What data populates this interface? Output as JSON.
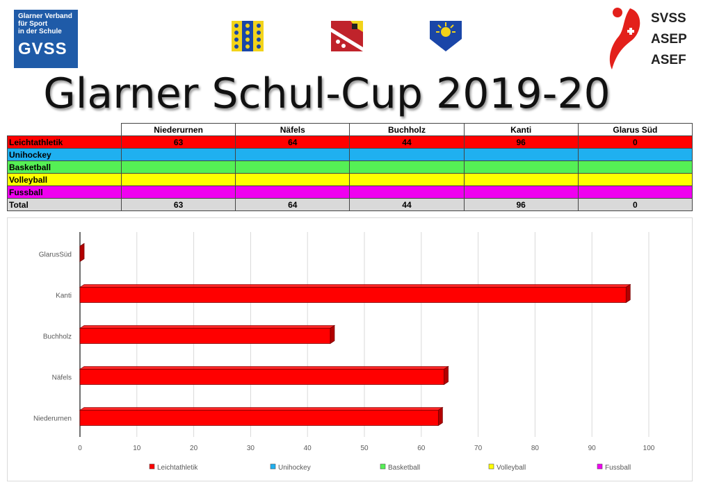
{
  "header": {
    "gvss_logo": {
      "subtext": "Glarner Verband\nfür Sport\nin der Schule",
      "abbr": "GVSS"
    },
    "crests": [
      "canton-glarus-crest",
      "glarus-nord-crest",
      "glarus-sued-crest"
    ],
    "svss_logo": {
      "lines": [
        "SVSS",
        "ASEP",
        "ASEF"
      ]
    },
    "title": "Glarner Schul-Cup 2019-20"
  },
  "table": {
    "columns": [
      "Niederurnen",
      "Näfels",
      "Buchholz",
      "Kanti",
      "Glarus Süd"
    ],
    "rows": [
      {
        "label": "Leichtathletik",
        "color": "#ff0000",
        "values": [
          "63",
          "64",
          "44",
          "96",
          "0"
        ]
      },
      {
        "label": "Unihockey",
        "color": "#1fb0f0",
        "values": [
          "",
          "",
          "",
          "",
          ""
        ]
      },
      {
        "label": "Basketball",
        "color": "#55f055",
        "values": [
          "",
          "",
          "",
          "",
          ""
        ]
      },
      {
        "label": "Volleyball",
        "color": "#ffff00",
        "values": [
          "",
          "",
          "",
          "",
          ""
        ]
      },
      {
        "label": "Fussball",
        "color": "#f000f0",
        "values": [
          "",
          "",
          "",
          "",
          ""
        ]
      },
      {
        "label": "Total",
        "color": "#d9d9d9",
        "values": [
          "63",
          "64",
          "44",
          "96",
          "0"
        ]
      }
    ]
  },
  "chart_data": {
    "type": "bar",
    "orientation": "horizontal",
    "categories": [
      "Niederurnen",
      "Näfels",
      "Buchholz",
      "Kanti",
      "Glarus Süd"
    ],
    "category_labels": [
      "Niederurnen",
      "Näfels",
      "Buchholz",
      "Kanti",
      "GlarusSüd"
    ],
    "series": [
      {
        "name": "Leichtathletik",
        "color": "#ff0000",
        "values": [
          63,
          64,
          44,
          96,
          0
        ]
      },
      {
        "name": "Unihockey",
        "color": "#1fb0f0",
        "values": [
          0,
          0,
          0,
          0,
          0
        ]
      },
      {
        "name": "Basketball",
        "color": "#55f055",
        "values": [
          0,
          0,
          0,
          0,
          0
        ]
      },
      {
        "name": "Volleyball",
        "color": "#ffff00",
        "values": [
          0,
          0,
          0,
          0,
          0
        ]
      },
      {
        "name": "Fussball",
        "color": "#f000f0",
        "values": [
          0,
          0,
          0,
          0,
          0
        ]
      }
    ],
    "stacked": true,
    "xlim": [
      0,
      100
    ],
    "xticks": [
      0,
      10,
      20,
      30,
      40,
      50,
      60,
      70,
      80,
      90,
      100
    ],
    "grid": true,
    "legend": "bottom",
    "title": "",
    "xlabel": "",
    "ylabel": ""
  }
}
